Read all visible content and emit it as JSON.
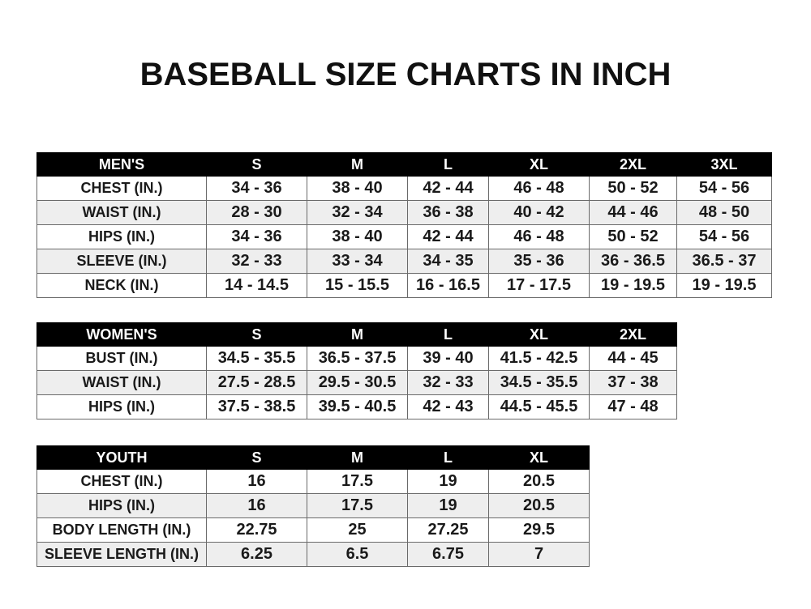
{
  "title": "BASEBALL SIZE CHARTS IN INCH",
  "tables": [
    {
      "name": "mens",
      "headers": [
        "MEN'S",
        "S",
        "M",
        "L",
        "XL",
        "2XL",
        "3XL"
      ],
      "rows": [
        [
          "CHEST (IN.)",
          "34 - 36",
          "38 - 40",
          "42 - 44",
          "46 - 48",
          "50 - 52",
          "54 - 56"
        ],
        [
          "WAIST (IN.)",
          "28 - 30",
          "32 - 34",
          "36 - 38",
          "40 - 42",
          "44 - 46",
          "48 - 50"
        ],
        [
          "HIPS (IN.)",
          "34 - 36",
          "38 - 40",
          "42 - 44",
          "46 - 48",
          "50 - 52",
          "54 - 56"
        ],
        [
          "SLEEVE (IN.)",
          "32 - 33",
          "33 - 34",
          "34 - 35",
          "35 - 36",
          "36 - 36.5",
          "36.5 - 37"
        ],
        [
          "NECK (IN.)",
          "14 - 14.5",
          "15 - 15.5",
          "16 - 16.5",
          "17 - 17.5",
          "19 - 19.5",
          "19 - 19.5"
        ]
      ]
    },
    {
      "name": "womens",
      "headers": [
        "WOMEN'S",
        "S",
        "M",
        "L",
        "XL",
        "2XL"
      ],
      "rows": [
        [
          "BUST (IN.)",
          "34.5 - 35.5",
          "36.5 - 37.5",
          "39 - 40",
          "41.5 - 42.5",
          "44 - 45"
        ],
        [
          "WAIST (IN.)",
          "27.5 - 28.5",
          "29.5 - 30.5",
          "32 - 33",
          "34.5 - 35.5",
          "37 - 38"
        ],
        [
          "HIPS (IN.)",
          "37.5 - 38.5",
          "39.5 - 40.5",
          "42 - 43",
          "44.5 - 45.5",
          "47 - 48"
        ]
      ]
    },
    {
      "name": "youth",
      "headers": [
        "YOUTH",
        "S",
        "M",
        "L",
        "XL"
      ],
      "rows": [
        [
          "CHEST (IN.)",
          "16",
          "17.5",
          "19",
          "20.5"
        ],
        [
          "HIPS (IN.)",
          "16",
          "17.5",
          "19",
          "20.5"
        ],
        [
          "BODY LENGTH (IN.)",
          "22.75",
          "25",
          "27.25",
          "29.5"
        ],
        [
          "SLEEVE LENGTH (IN.)",
          "6.25",
          "6.5",
          "6.75",
          "7"
        ]
      ]
    }
  ]
}
